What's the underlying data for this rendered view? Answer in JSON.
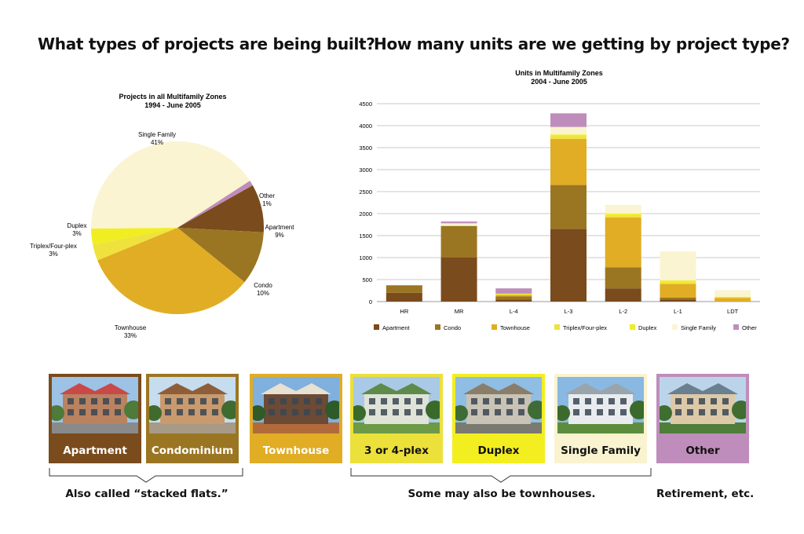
{
  "headlines": {
    "left": "What types of projects are being built?",
    "right": "How many units are we getting by project type?"
  },
  "colors": {
    "apartment": "#7a4b1c",
    "condo": "#9b7622",
    "townhouse": "#e0ad25",
    "triplex": "#efe23c",
    "duplex": "#f0ee22",
    "single_family": "#faf4d2",
    "other": "#bf8dbb"
  },
  "chart_data": [
    {
      "type": "pie",
      "title": "Projects in all Multifamily Zones",
      "subtitle": "1994 - June 2005",
      "slices": [
        {
          "label": "Other",
          "value": 1,
          "value_label": "1%",
          "color": "#bf8dbb"
        },
        {
          "label": "Apartment",
          "value": 9,
          "value_label": "9%",
          "color": "#7a4b1c"
        },
        {
          "label": "Condo",
          "value": 10,
          "value_label": "10%",
          "color": "#9b7622"
        },
        {
          "label": "Townhouse",
          "value": 33,
          "value_label": "33%",
          "color": "#e0ad25"
        },
        {
          "label": "Triplex/Four-plex",
          "value": 3,
          "value_label": "3%",
          "color": "#efe23c"
        },
        {
          "label": "Duplex",
          "value": 3,
          "value_label": "3%",
          "color": "#f0ee22"
        },
        {
          "label": "Single Family",
          "value": 41,
          "value_label": "41%",
          "color": "#faf4d2"
        }
      ]
    },
    {
      "type": "bar",
      "stacked": true,
      "title": "Units in Multifamily Zones",
      "subtitle": "2004 - June 2005",
      "categories": [
        "HR",
        "MR",
        "L-4",
        "L-3",
        "L-2",
        "L-1",
        "LDT"
      ],
      "ylim": [
        0,
        4500
      ],
      "yticks": [
        0,
        500,
        1000,
        1500,
        2000,
        2500,
        3000,
        3500,
        4000,
        4500
      ],
      "grid": true,
      "legend_position": "bottom",
      "series": [
        {
          "name": "Apartment",
          "color": "#7a4b1c",
          "values": [
            200,
            1000,
            50,
            1650,
            300,
            50,
            0
          ]
        },
        {
          "name": "Condo",
          "color": "#9b7622",
          "values": [
            170,
            720,
            70,
            1000,
            480,
            40,
            0
          ]
        },
        {
          "name": "Townhouse",
          "color": "#e0ad25",
          "values": [
            0,
            0,
            30,
            1050,
            1130,
            310,
            80
          ]
        },
        {
          "name": "Triplex/Four-plex",
          "color": "#efe23c",
          "values": [
            0,
            0,
            20,
            60,
            60,
            30,
            10
          ]
        },
        {
          "name": "Duplex",
          "color": "#f0ee22",
          "values": [
            0,
            0,
            10,
            40,
            30,
            50,
            20
          ]
        },
        {
          "name": "Single Family",
          "color": "#faf4d2",
          "values": [
            0,
            60,
            0,
            170,
            200,
            660,
            150
          ]
        },
        {
          "name": "Other",
          "color": "#bf8dbb",
          "values": [
            0,
            40,
            120,
            310,
            0,
            0,
            0
          ]
        }
      ]
    }
  ],
  "cards": [
    {
      "label": "Apartment",
      "bg": "#7a4b1c",
      "text_color": "#ffffff",
      "border": "#7a4b1c"
    },
    {
      "label": "Condominium",
      "bg": "#9b7622",
      "text_color": "#ffffff",
      "border": "#9b7622"
    },
    {
      "label": "Townhouse",
      "bg": "#e0ad25",
      "text_color": "#ffffff",
      "border": "#e0ad25"
    },
    {
      "label": "3 or 4-plex",
      "bg": "#ece03a",
      "text_color": "#111111",
      "border": "#ece03a"
    },
    {
      "label": "Duplex",
      "bg": "#f3ee20",
      "text_color": "#111111",
      "border": "#f3ee20"
    },
    {
      "label": "Single Family",
      "bg": "#f9f3cf",
      "text_color": "#111111",
      "border": "#f9f3cf"
    },
    {
      "label": "Other",
      "bg": "#bf8dbb",
      "text_color": "#111111",
      "border": "#bf8dbb"
    }
  ],
  "captions": {
    "stacked_flats": "Also called “stacked flats.”",
    "townhouses": "Some may also be townhouses.",
    "retirement": "Retirement, etc."
  }
}
